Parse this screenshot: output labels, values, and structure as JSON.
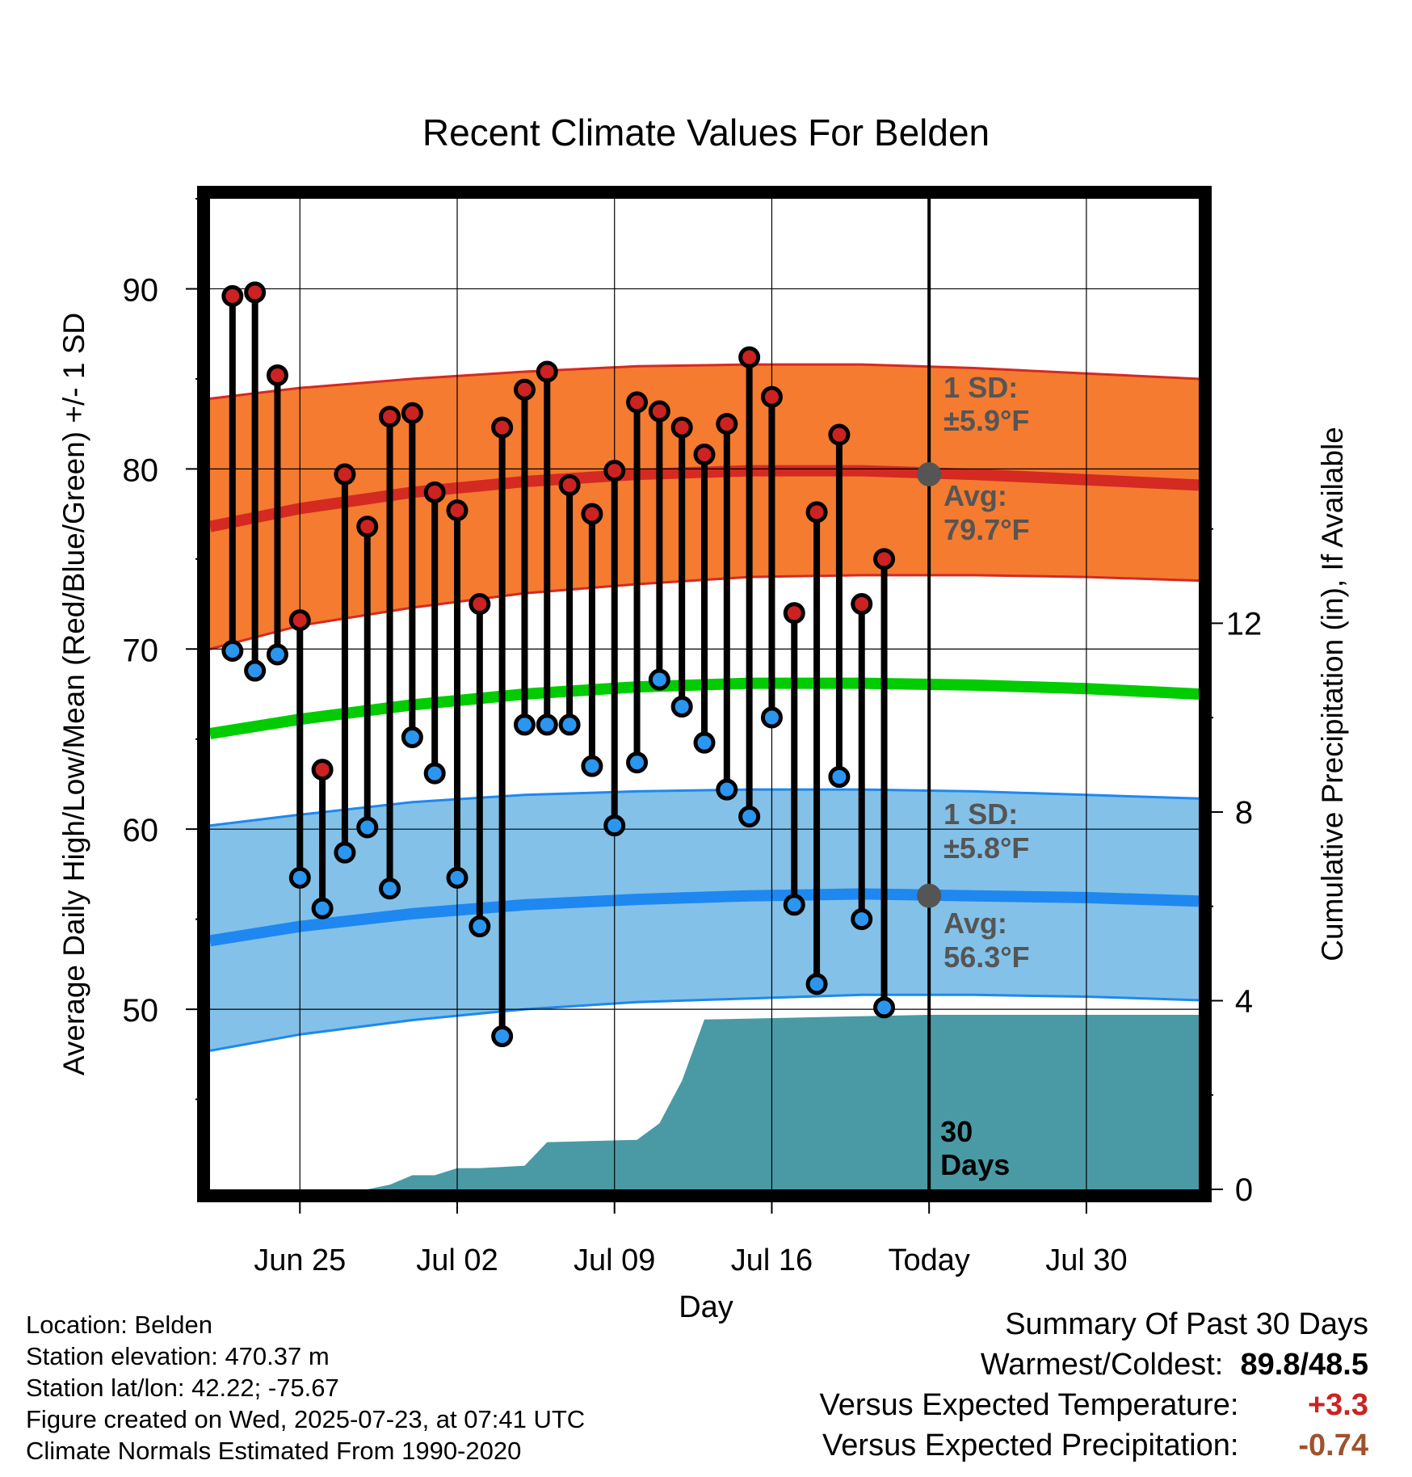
{
  "chart_data": {
    "type": "line",
    "title": "Recent Climate Values For Belden",
    "xlabel": "Day",
    "ylabel": "Average Daily High/Low/Mean (Red/Blue/Green) +/- 1 SD",
    "y2label": "Cumulative Precipitation (in), If Available",
    "ylim": [
      40,
      95
    ],
    "y2lim": [
      0,
      21
    ],
    "y_ticks": [
      50,
      60,
      70,
      80,
      90
    ],
    "y2_ticks": [
      0,
      4,
      8,
      12
    ],
    "x_range": [
      "2025-06-21",
      "2025-08-04"
    ],
    "x_ticks": [
      {
        "date": "2025-06-25",
        "label": "Jun 25"
      },
      {
        "date": "2025-07-02",
        "label": "Jul 02"
      },
      {
        "date": "2025-07-09",
        "label": "Jul 09"
      },
      {
        "date": "2025-07-16",
        "label": "Jul 16"
      },
      {
        "date": "2025-07-23",
        "label": "Today"
      },
      {
        "date": "2025-07-30",
        "label": "Jul 30"
      }
    ],
    "grid": true,
    "dates": [
      "2025-06-22",
      "2025-06-23",
      "2025-06-24",
      "2025-06-25",
      "2025-06-26",
      "2025-06-27",
      "2025-06-28",
      "2025-06-29",
      "2025-06-30",
      "2025-07-01",
      "2025-07-02",
      "2025-07-03",
      "2025-07-04",
      "2025-07-05",
      "2025-07-06",
      "2025-07-07",
      "2025-07-08",
      "2025-07-09",
      "2025-07-10",
      "2025-07-11",
      "2025-07-12",
      "2025-07-13",
      "2025-07-14",
      "2025-07-15",
      "2025-07-16",
      "2025-07-17",
      "2025-07-18",
      "2025-07-19",
      "2025-07-20",
      "2025-07-21",
      "2025-07-22"
    ],
    "highs": [
      89.6,
      89.8,
      85.2,
      71.6,
      63.3,
      79.7,
      76.8,
      82.9,
      83.1,
      78.7,
      77.7,
      72.5,
      82.3,
      84.4,
      85.4,
      79.1,
      77.5,
      79.9,
      83.7,
      83.2,
      82.3,
      80.8,
      82.5,
      86.2,
      84.0,
      72.0,
      77.6,
      81.9,
      72.5,
      75.0,
      null
    ],
    "lows": [
      69.9,
      68.8,
      69.7,
      57.3,
      55.6,
      58.7,
      60.1,
      56.7,
      65.1,
      63.1,
      57.3,
      54.6,
      48.5,
      65.8,
      65.8,
      65.8,
      63.5,
      60.2,
      63.7,
      68.3,
      66.8,
      64.8,
      62.2,
      60.7,
      66.2,
      55.8,
      51.4,
      62.9,
      55.0,
      50.1,
      null
    ],
    "normals": {
      "dates": [
        "2025-06-21",
        "2025-06-25",
        "2025-06-30",
        "2025-07-05",
        "2025-07-10",
        "2025-07-15",
        "2025-07-20",
        "2025-07-25",
        "2025-07-30",
        "2025-08-04"
      ],
      "high_avg": [
        76.8,
        77.8,
        78.7,
        79.3,
        79.7,
        79.9,
        79.9,
        79.7,
        79.4,
        79.1
      ],
      "high_plus_sd": [
        83.9,
        84.5,
        85.0,
        85.4,
        85.7,
        85.8,
        85.8,
        85.6,
        85.3,
        85.0
      ],
      "high_minus_sd": [
        70.0,
        71.3,
        72.3,
        73.1,
        73.6,
        74.0,
        74.1,
        74.1,
        74.0,
        73.8
      ],
      "mean_avg": [
        65.3,
        66.1,
        66.9,
        67.5,
        67.9,
        68.1,
        68.1,
        68.0,
        67.8,
        67.5
      ],
      "low_avg": [
        53.8,
        54.6,
        55.3,
        55.8,
        56.1,
        56.3,
        56.4,
        56.3,
        56.2,
        56.0
      ],
      "low_plus_sd": [
        60.2,
        60.8,
        61.5,
        61.9,
        62.1,
        62.2,
        62.2,
        62.1,
        61.9,
        61.7
      ],
      "low_minus_sd": [
        47.7,
        48.6,
        49.4,
        50.0,
        50.4,
        50.6,
        50.8,
        50.8,
        50.7,
        50.5
      ]
    },
    "precip_cumulative": {
      "dates": [
        "2025-06-21",
        "2025-06-28",
        "2025-06-29",
        "2025-06-30",
        "2025-07-01",
        "2025-07-02",
        "2025-07-03",
        "2025-07-05",
        "2025-07-06",
        "2025-07-10",
        "2025-07-11",
        "2025-07-12",
        "2025-07-13",
        "2025-07-18",
        "2025-07-23",
        "2025-08-04"
      ],
      "values": [
        0,
        0,
        0.1,
        0.3,
        0.3,
        0.45,
        0.45,
        0.5,
        1.0,
        1.05,
        1.4,
        2.3,
        3.6,
        3.65,
        3.7,
        3.7
      ]
    },
    "annotations": {
      "high_sd_label": "1 SD:",
      "high_sd_value": "±5.9°F",
      "high_avg_label": "Avg:",
      "high_avg_value": "79.7°F",
      "low_sd_label": "1 SD:",
      "low_sd_value": "±5.8°F",
      "low_avg_label": "Avg:",
      "low_avg_value": "56.3°F",
      "today_marker_high": 79.7,
      "today_marker_low": 56.3,
      "period_label_1": "30",
      "period_label_2": "Days"
    },
    "colors": {
      "high_band": "#f47b30",
      "high_line": "#d42a22",
      "mean_line": "#00cc00",
      "low_band": "#83c1e8",
      "low_line": "#1e88f0",
      "precip": "#4a9aa5",
      "high_dot": "#cc2222",
      "low_dot": "#2a96f0",
      "annotation": "#555555"
    }
  },
  "meta": {
    "location": "Location: Belden",
    "elevation": "Station elevation: 470.37 m",
    "latlon": "Station lat/lon: 42.22; -75.67",
    "created": "Figure created on Wed, 2025-07-23, at 07:41 UTC",
    "normals": "Climate Normals Estimated From 1990-2020"
  },
  "summary": {
    "heading": "Summary Of Past 30 Days",
    "warm_cold_label": "Warmest/Coldest:",
    "warmest": "89.8",
    "slash": "/",
    "coldest": "48.5",
    "temp_label": "Versus Expected Temperature:",
    "temp_value": "+3.3",
    "temp_color": "#cc2222",
    "precip_label": "Versus Expected Precipitation:",
    "precip_value": "-0.74",
    "precip_color": "#a0522d"
  }
}
